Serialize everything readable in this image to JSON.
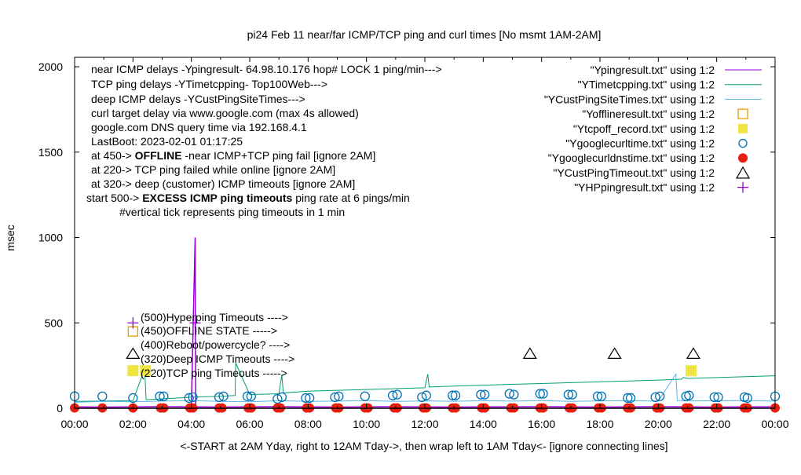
{
  "chart_data": {
    "type": "line",
    "title": "pi24 Feb 11  near/far ICMP/TCP ping and curl times [No msmt 1AM-2AM]",
    "xlabel": "<-START at 2AM Yday, right to 12AM Tday->, then wrap left to 1AM Tday<- [ignore connecting lines]",
    "ylabel": "msec",
    "xlim": [
      "00:00",
      "24:00"
    ],
    "ylim": [
      0,
      2050
    ],
    "xticks": [
      "00:00",
      "02:00",
      "04:00",
      "06:00",
      "08:00",
      "10:00",
      "12:00",
      "14:00",
      "16:00",
      "18:00",
      "20:00",
      "22:00",
      "00:00"
    ],
    "yticks": [
      "0",
      "500",
      "1000",
      "1500",
      "2000"
    ],
    "ytick_values": [
      0,
      500,
      1000,
      1500,
      2000
    ],
    "grid": false,
    "legend_position": "top-right",
    "annotations_left": [
      {
        "text": "near ICMP delays -Ypingresult- 64.98.10.176 hop# LOCK 1 ping/min--->"
      },
      {
        "text": "TCP ping delays -YTimetcpping- Top100Web--->"
      },
      {
        "text": "deep ICMP delays -YCustPingSiteTimes--->"
      },
      {
        "text": "curl target delay via www.google.com (max 4s allowed)"
      },
      {
        "text": "google.com DNS query time via 192.168.4.1"
      },
      {
        "text": "LastBoot: 2023-02-01 01:17:25"
      },
      {
        "pre": "at 450-> ",
        "bold": "OFFLINE",
        "post": " -near ICMP+TCP ping fail [ignore 2AM]"
      },
      {
        "text": "at 220-> TCP ping failed while online [ignore 2AM]"
      },
      {
        "text": "at 320-> deep (customer) ICMP timeouts [ignore 2AM]"
      },
      {
        "pre": "start 500-> ",
        "bold": "EXCESS ICMP ping timeouts",
        "post": "  ping rate at 6 pings/min"
      },
      {
        "text": "#vertical tick represents ping timeouts in 1 min"
      }
    ],
    "level_labels": [
      {
        "y": 500,
        "text": "(500)Hyperping Timeouts ---->"
      },
      {
        "y": 450,
        "text": "(450)OFFLINE STATE ----->"
      },
      {
        "y": 400,
        "text": "(400)Reboot/powercycle? ---->"
      },
      {
        "y": 320,
        "text": "(320)Deep ICMP Timeouts ---->"
      },
      {
        "y": 220,
        "text": "(220)TCP ping Timeouts ----->"
      }
    ],
    "series": [
      {
        "name": "\"Ypingresult.txt\" using 1:2",
        "style": "line",
        "color": "#9400d3",
        "x": [
          0,
          1,
          2,
          3,
          4,
          4.13,
          4.14,
          4.15,
          5,
          6,
          7,
          8,
          9,
          10,
          11,
          12,
          13,
          14,
          15,
          16,
          17,
          18,
          19,
          20,
          21,
          22,
          23,
          24
        ],
        "y": [
          8,
          7,
          8,
          9,
          8,
          1000,
          440,
          8,
          7,
          8,
          9,
          8,
          7,
          8,
          9,
          8,
          7,
          8,
          8,
          9,
          8,
          7,
          8,
          9,
          8,
          7,
          8,
          8
        ]
      },
      {
        "name": "\"YTimetcpping.txt\" using 1:2",
        "style": "line",
        "color": "#009e73",
        "x": [
          0,
          1,
          2,
          2.4,
          2.45,
          3,
          3.5,
          4,
          5,
          5.5,
          5.52,
          6,
          7,
          7.1,
          7.15,
          8,
          9,
          10,
          11,
          12,
          12.1,
          12.15,
          13,
          14,
          15,
          16,
          17,
          18,
          19,
          20,
          20.8,
          20.85,
          21,
          22,
          23,
          24
        ],
        "y": [
          40,
          42,
          45,
          230,
          50,
          55,
          60,
          65,
          70,
          75,
          265,
          80,
          85,
          195,
          90,
          100,
          105,
          110,
          115,
          120,
          200,
          125,
          130,
          135,
          140,
          145,
          150,
          155,
          160,
          165,
          170,
          180,
          175,
          180,
          185,
          190
        ]
      },
      {
        "name": "\"YCustPingSiteTimes.txt\" using 1:2",
        "style": "line",
        "color": "#56b4e9",
        "x": [
          0,
          1,
          2,
          3,
          4,
          5,
          6,
          7,
          8,
          9,
          10,
          11,
          12,
          13,
          14,
          15,
          16,
          17,
          18,
          19,
          20,
          20.6,
          20.65,
          21,
          22,
          23,
          24
        ],
        "y": [
          35,
          40,
          38,
          42,
          45,
          40,
          38,
          44,
          40,
          42,
          45,
          40,
          43,
          41,
          44,
          42,
          45,
          40,
          43,
          44,
          42,
          200,
          45,
          43,
          44,
          45,
          42
        ]
      },
      {
        "name": "\"Yofflineresult.txt\" using 1:2",
        "style": "open-square",
        "color": "#e69f00",
        "x": [
          2.0
        ],
        "y": [
          450
        ]
      },
      {
        "name": "\"Ytcpoff_record.txt\" using 1:2",
        "style": "filled-square",
        "color": "#f0e442",
        "x": [
          2.0,
          2.43,
          21.12
        ],
        "y": [
          220,
          220,
          220
        ]
      },
      {
        "name": "\"Ygooglecurltime.txt\" using 1:2",
        "style": "open-circle",
        "color": "#0072b2",
        "x": [
          0,
          0.95,
          2.0,
          2.92,
          3.05,
          3.92,
          4.05,
          4.95,
          5.1,
          5.92,
          6.05,
          6.95,
          7.1,
          7.92,
          8.05,
          8.92,
          9.05,
          9.95,
          10.9,
          11.05,
          11.9,
          12.05,
          12.95,
          13.05,
          13.92,
          14.05,
          14.9,
          15.05,
          15.95,
          16.05,
          16.92,
          17.05,
          17.92,
          18.05,
          18.95,
          19.05,
          19.9,
          20.05,
          20.95,
          21.05,
          21.92,
          22.05,
          22.95,
          23.05,
          24
        ],
        "y": [
          70,
          70,
          60,
          70,
          70,
          60,
          65,
          65,
          70,
          70,
          70,
          55,
          65,
          60,
          60,
          65,
          70,
          70,
          75,
          80,
          65,
          75,
          75,
          75,
          80,
          80,
          85,
          80,
          85,
          85,
          80,
          80,
          70,
          70,
          60,
          60,
          65,
          70,
          70,
          75,
          65,
          65,
          65,
          60,
          70
        ]
      },
      {
        "name": "\"Ygooglecurldnstime.txt\" using 1:2",
        "style": "filled-circle",
        "color": "#e51e10",
        "x": [
          0,
          0.95,
          2.0,
          2.95,
          3.05,
          3.95,
          4.05,
          4.95,
          5.05,
          5.95,
          6.05,
          6.95,
          7.05,
          7.95,
          8.05,
          8.95,
          9.05,
          9.95,
          10.05,
          10.95,
          11.05,
          11.95,
          12.05,
          12.95,
          13.05,
          13.95,
          14.05,
          14.95,
          15.05,
          15.95,
          16.05,
          16.95,
          17.05,
          17.95,
          18.05,
          18.95,
          19.05,
          19.95,
          20.05,
          20.95,
          21.05,
          21.95,
          22.05,
          22.95,
          23.05,
          24
        ],
        "y": [
          2,
          2,
          2,
          2,
          2,
          2,
          2,
          2,
          2,
          2,
          2,
          2,
          2,
          2,
          2,
          2,
          2,
          2,
          2,
          2,
          2,
          2,
          2,
          2,
          2,
          2,
          2,
          2,
          2,
          2,
          2,
          2,
          2,
          2,
          2,
          2,
          2,
          2,
          2,
          2,
          2,
          2,
          2,
          2,
          2,
          2
        ]
      },
      {
        "name": "\"YCustPingTimeout.txt\" using 1:2",
        "style": "open-triangle",
        "color": "#000000",
        "x": [
          2.0,
          15.6,
          18.5,
          21.2
        ],
        "y": [
          320,
          320,
          320,
          320
        ]
      },
      {
        "name": "\"YHPpingresult.txt\" using 1:2",
        "style": "plus",
        "color": "#9400d3",
        "x": [
          2.0,
          4.13
        ],
        "y": [
          500,
          500
        ]
      }
    ]
  }
}
